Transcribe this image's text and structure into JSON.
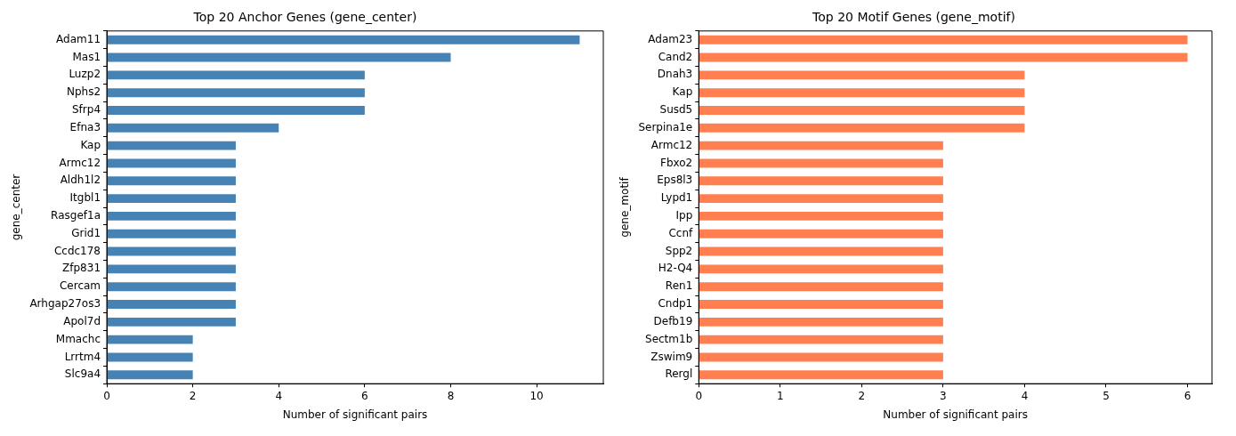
{
  "chart_data": [
    {
      "type": "bar",
      "orientation": "horizontal",
      "title": "Top 20 Anchor Genes (gene_center)",
      "xlabel": "Number of significant pairs",
      "ylabel": "gene_center",
      "categories": [
        "Adam11",
        "Mas1",
        "Luzp2",
        "Nphs2",
        "Sfrp4",
        "Efna3",
        "Kap",
        "Armc12",
        "Aldh1l2",
        "Itgbl1",
        "Rasgef1a",
        "Grid1",
        "Ccdc178",
        "Zfp831",
        "Cercam",
        "Arhgap27os3",
        "Apol7d",
        "Mmachc",
        "Lrrtm4",
        "Slc9a4"
      ],
      "values": [
        11,
        8,
        6,
        6,
        6,
        4,
        3,
        3,
        3,
        3,
        3,
        3,
        3,
        3,
        3,
        3,
        3,
        2,
        2,
        2
      ],
      "color": "#4682b4",
      "xlim": [
        0,
        11.55
      ],
      "xticks": [
        0,
        2,
        4,
        6,
        8,
        10
      ],
      "grid": false
    },
    {
      "type": "bar",
      "orientation": "horizontal",
      "title": "Top 20 Motif Genes (gene_motif)",
      "xlabel": "Number of significant pairs",
      "ylabel": "gene_motif",
      "categories": [
        "Adam23",
        "Cand2",
        "Dnah3",
        "Kap",
        "Susd5",
        "Serpina1e",
        "Armc12",
        "Fbxo2",
        "Eps8l3",
        "Lypd1",
        "Ipp",
        "Ccnf",
        "Spp2",
        "H2-Q4",
        "Ren1",
        "Cndp1",
        "Defb19",
        "Sectm1b",
        "Zswim9",
        "Rergl"
      ],
      "values": [
        6,
        6,
        4,
        4,
        4,
        4,
        3,
        3,
        3,
        3,
        3,
        3,
        3,
        3,
        3,
        3,
        3,
        3,
        3,
        3
      ],
      "color": "#ff7f50",
      "xlim": [
        0,
        6.3
      ],
      "xticks": [
        0,
        1,
        2,
        3,
        4,
        5,
        6
      ],
      "grid": false
    }
  ]
}
